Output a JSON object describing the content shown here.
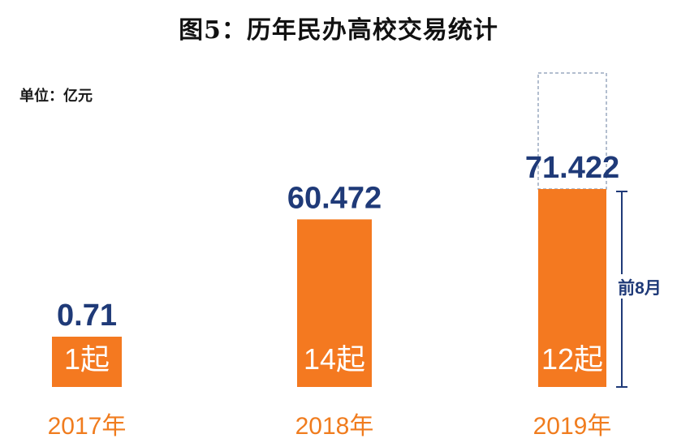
{
  "title": "图5：历年民办高校交易统计",
  "unit_label": "单位：亿元",
  "colors": {
    "bar": "#f47920",
    "value": "#1f3a78",
    "category": "#f07c1e",
    "outline": "#9aa8bf"
  },
  "chart_data": {
    "type": "bar",
    "title": "图5：历年民办高校交易统计",
    "ylabel": "单位：亿元",
    "categories": [
      "2017年",
      "2018年",
      "2019年"
    ],
    "values": [
      0.71,
      60.472,
      71.422
    ],
    "value_labels": [
      "0.71",
      "60.472",
      "71.422"
    ],
    "bar_labels": [
      "1起",
      "14起",
      "12起"
    ],
    "annotation": "前8月",
    "annotation_category": "2019年",
    "projected_outline_on": "2019年",
    "ylim": [
      0,
      100
    ],
    "grid": false,
    "legend": "none"
  }
}
